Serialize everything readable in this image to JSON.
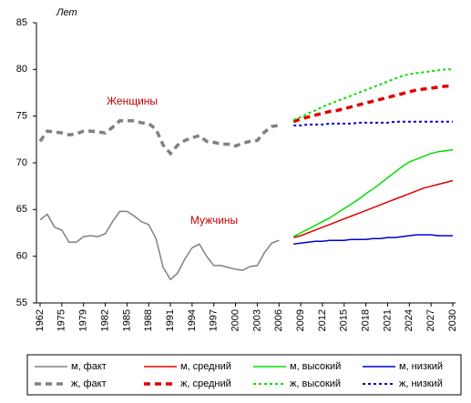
{
  "chart_data": {
    "type": "line",
    "y_label": "Лет",
    "annotations": [
      "Женщины",
      "Мужчины"
    ],
    "categories": [
      "1962",
      null,
      null,
      "1975",
      null,
      null,
      "1979",
      null,
      null,
      "1982",
      null,
      null,
      "1985",
      null,
      null,
      "1988",
      null,
      null,
      "1991",
      null,
      null,
      "1994",
      null,
      null,
      "1997",
      null,
      null,
      "2000",
      null,
      null,
      "2003",
      null,
      null,
      "2006",
      null,
      null,
      "2009",
      null,
      null,
      "2012",
      null,
      null,
      "2015",
      null,
      null,
      "2018",
      null,
      null,
      "2021",
      null,
      null,
      "2024",
      null,
      null,
      "2027",
      null,
      null,
      "2030"
    ],
    "ylim": [
      55,
      85
    ],
    "yticks": [
      55,
      60,
      65,
      70,
      75,
      80,
      85
    ],
    "series": [
      {
        "name": "м, факт",
        "color": "#808080",
        "line_style": "solid",
        "values": [
          63.9,
          64.5,
          63.1,
          62.8,
          61.5,
          61.5,
          62.1,
          62.2,
          62.1,
          62.4,
          63.7,
          64.8,
          64.8,
          64.3,
          63.7,
          63.4,
          61.9,
          58.8,
          57.5,
          58.2,
          59.7,
          60.9,
          61.3,
          60.0,
          59.0,
          59.0,
          58.8,
          58.6,
          58.5,
          58.9,
          59.0,
          60.4,
          61.4,
          61.7,
          null,
          null,
          null,
          null,
          null,
          null,
          null,
          null,
          null,
          null,
          null,
          null,
          null,
          null,
          null,
          null,
          null,
          null,
          null,
          null,
          null,
          null,
          null,
          null
        ]
      },
      {
        "name": "м, средний",
        "color": "#e00000",
        "line_style": "solid",
        "values": [
          null,
          null,
          null,
          null,
          null,
          null,
          null,
          null,
          null,
          null,
          null,
          null,
          null,
          null,
          null,
          null,
          null,
          null,
          null,
          null,
          null,
          null,
          null,
          null,
          null,
          null,
          null,
          null,
          null,
          null,
          null,
          null,
          null,
          null,
          null,
          62.0,
          62.2,
          62.5,
          62.8,
          63.1,
          63.4,
          63.7,
          64.0,
          64.3,
          64.6,
          64.9,
          65.2,
          65.5,
          65.8,
          66.1,
          66.4,
          66.7,
          67.0,
          67.3,
          67.5,
          67.7,
          67.9,
          68.1
        ]
      },
      {
        "name": "м, высокий",
        "color": "#00e000",
        "line_style": "solid",
        "values": [
          null,
          null,
          null,
          null,
          null,
          null,
          null,
          null,
          null,
          null,
          null,
          null,
          null,
          null,
          null,
          null,
          null,
          null,
          null,
          null,
          null,
          null,
          null,
          null,
          null,
          null,
          null,
          null,
          null,
          null,
          null,
          null,
          null,
          null,
          null,
          62.1,
          62.5,
          62.9,
          63.3,
          63.7,
          64.1,
          64.6,
          65.1,
          65.6,
          66.1,
          66.7,
          67.2,
          67.8,
          68.4,
          69.0,
          69.6,
          70.1,
          70.4,
          70.7,
          71.0,
          71.2,
          71.3,
          71.4
        ]
      },
      {
        "name": "м, низкий",
        "color": "#0000d0",
        "line_style": "solid",
        "values": [
          null,
          null,
          null,
          null,
          null,
          null,
          null,
          null,
          null,
          null,
          null,
          null,
          null,
          null,
          null,
          null,
          null,
          null,
          null,
          null,
          null,
          null,
          null,
          null,
          null,
          null,
          null,
          null,
          null,
          null,
          null,
          null,
          null,
          null,
          null,
          61.3,
          61.4,
          61.5,
          61.6,
          61.6,
          61.7,
          61.7,
          61.7,
          61.8,
          61.8,
          61.8,
          61.9,
          61.9,
          62.0,
          62.0,
          62.1,
          62.2,
          62.3,
          62.3,
          62.3,
          62.2,
          62.2,
          62.2
        ]
      },
      {
        "name": "ж, факт",
        "color": "#808080",
        "line_style": "dashed",
        "values": [
          72.3,
          73.4,
          73.3,
          73.2,
          73.0,
          73.1,
          73.4,
          73.4,
          73.3,
          73.2,
          73.8,
          74.5,
          74.5,
          74.5,
          74.3,
          74.2,
          73.6,
          71.9,
          71.0,
          71.9,
          72.4,
          72.7,
          72.9,
          72.3,
          72.2,
          72.0,
          72.0,
          71.8,
          72.1,
          72.3,
          72.4,
          73.3,
          73.9,
          74.0,
          null,
          null,
          null,
          null,
          null,
          null,
          null,
          null,
          null,
          null,
          null,
          null,
          null,
          null,
          null,
          null,
          null,
          null,
          null,
          null,
          null,
          null,
          null,
          null
        ]
      },
      {
        "name": "ж, средний",
        "color": "#e00000",
        "line_style": "dashed",
        "values": [
          null,
          null,
          null,
          null,
          null,
          null,
          null,
          null,
          null,
          null,
          null,
          null,
          null,
          null,
          null,
          null,
          null,
          null,
          null,
          null,
          null,
          null,
          null,
          null,
          null,
          null,
          null,
          null,
          null,
          null,
          null,
          null,
          null,
          null,
          null,
          74.4,
          74.7,
          74.9,
          75.1,
          75.3,
          75.5,
          75.6,
          75.8,
          76.0,
          76.2,
          76.4,
          76.6,
          76.8,
          77.0,
          77.2,
          77.4,
          77.6,
          77.8,
          77.9,
          78.0,
          78.1,
          78.2,
          78.2
        ]
      },
      {
        "name": "ж, высокий",
        "color": "#00e000",
        "line_style": "dotted",
        "values": [
          null,
          null,
          null,
          null,
          null,
          null,
          null,
          null,
          null,
          null,
          null,
          null,
          null,
          null,
          null,
          null,
          null,
          null,
          null,
          null,
          null,
          null,
          null,
          null,
          null,
          null,
          null,
          null,
          null,
          null,
          null,
          null,
          null,
          null,
          null,
          74.6,
          74.9,
          75.3,
          75.6,
          76.0,
          76.3,
          76.6,
          76.9,
          77.2,
          77.5,
          77.8,
          78.1,
          78.4,
          78.7,
          79.0,
          79.3,
          79.5,
          79.6,
          79.7,
          79.8,
          79.9,
          80.0,
          80.0
        ]
      },
      {
        "name": "ж, низкий",
        "color": "#0000d0",
        "line_style": "dotted",
        "values": [
          null,
          null,
          null,
          null,
          null,
          null,
          null,
          null,
          null,
          null,
          null,
          null,
          null,
          null,
          null,
          null,
          null,
          null,
          null,
          null,
          null,
          null,
          null,
          null,
          null,
          null,
          null,
          null,
          null,
          null,
          null,
          null,
          null,
          null,
          null,
          74.0,
          74.0,
          74.1,
          74.1,
          74.1,
          74.2,
          74.2,
          74.2,
          74.2,
          74.3,
          74.3,
          74.3,
          74.3,
          74.3,
          74.4,
          74.4,
          74.4,
          74.4,
          74.4,
          74.4,
          74.4,
          74.4,
          74.4
        ]
      }
    ]
  }
}
